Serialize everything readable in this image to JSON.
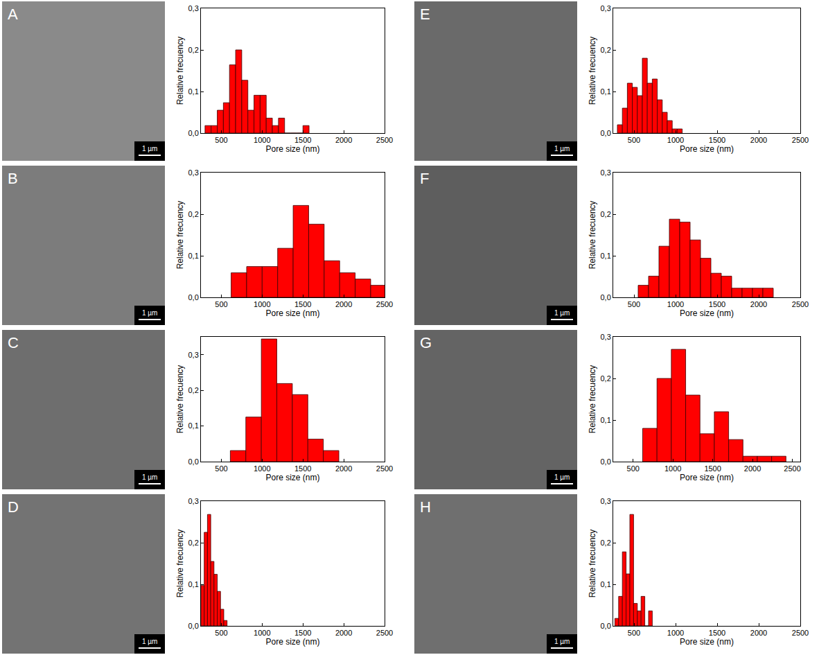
{
  "chart_data": [
    {
      "type": "histogram",
      "color": "#ff0000",
      "xlabel": "Pore size (nm)",
      "ylabel": "Relative frecuency",
      "bins": [
        300,
        375,
        450,
        525,
        600,
        675,
        750,
        825,
        900,
        975,
        1050,
        1125,
        1200,
        1275,
        1350,
        1425,
        1500,
        1575
      ],
      "values": [
        0.018,
        0.018,
        0.055,
        0.073,
        0.164,
        0.2,
        0.127,
        0.055,
        0.091,
        0.091,
        0.036,
        0.018,
        0.036,
        0,
        0,
        0,
        0.018
      ],
      "xlim": [
        250,
        2500
      ],
      "ylim": [
        0,
        0.3
      ],
      "xticks": [
        500,
        1000,
        1500,
        2000,
        2500
      ],
      "yticks": [
        {
          "value": 0,
          "label": "0,0"
        },
        {
          "value": 0.1,
          "label": "0,1"
        },
        {
          "value": 0.2,
          "label": "0,2"
        },
        {
          "value": 0.3,
          "label": "0,3"
        }
      ]
    },
    {
      "type": "histogram",
      "color": "#ff0000",
      "xlabel": "Pore size (nm)",
      "ylabel": "Relative frecuency",
      "bins": [
        620,
        810,
        1000,
        1190,
        1380,
        1570,
        1760,
        1950,
        2140,
        2330,
        2520
      ],
      "values": [
        0.059,
        0.074,
        0.074,
        0.118,
        0.221,
        0.176,
        0.088,
        0.059,
        0.044,
        0.029
      ],
      "xlim": [
        250,
        2500
      ],
      "ylim": [
        0,
        0.3
      ],
      "xticks": [
        500,
        1000,
        1500,
        2000,
        2500
      ],
      "yticks": [
        {
          "value": 0,
          "label": "0,0"
        },
        {
          "value": 0.1,
          "label": "0,1"
        },
        {
          "value": 0.2,
          "label": "0,2"
        },
        {
          "value": 0.3,
          "label": "0,3"
        }
      ]
    },
    {
      "type": "histogram",
      "color": "#ff0000",
      "xlabel": "Pore size (nm)",
      "ylabel": "Relative frecuency",
      "bins": [
        610,
        800,
        990,
        1180,
        1370,
        1560,
        1750,
        1940
      ],
      "values": [
        0.031,
        0.125,
        0.344,
        0.219,
        0.188,
        0.063,
        0.031
      ],
      "xlim": [
        250,
        2500
      ],
      "ylim": [
        0,
        0.35
      ],
      "xticks": [
        500,
        1000,
        1500,
        2000,
        2500
      ],
      "yticks": [
        {
          "value": 0,
          "label": "0,0"
        },
        {
          "value": 0.1,
          "label": "0,1"
        },
        {
          "value": 0.2,
          "label": "0,2"
        },
        {
          "value": 0.3,
          "label": "0,3"
        }
      ]
    },
    {
      "type": "histogram",
      "color": "#ff0000",
      "xlabel": "Pore size (nm)",
      "ylabel": "Relative frecuency",
      "bins": [
        250,
        290,
        330,
        370,
        410,
        450,
        490,
        530,
        570
      ],
      "values": [
        0.097,
        0.225,
        0.268,
        0.155,
        0.124,
        0.083,
        0.04,
        0.013
      ],
      "xlim": [
        250,
        2500
      ],
      "ylim": [
        0,
        0.3
      ],
      "xticks": [
        500,
        1000,
        1500,
        2000,
        2500
      ],
      "yticks": [
        {
          "value": 0,
          "label": "0,0"
        },
        {
          "value": 0.1,
          "label": "0,1"
        },
        {
          "value": 0.2,
          "label": "0,2"
        },
        {
          "value": 0.3,
          "label": "0,3"
        }
      ]
    },
    {
      "type": "histogram",
      "color": "#ff0000",
      "xlabel": "Pore size (nm)",
      "ylabel": "Relative frecuency",
      "bins": [
        300,
        360,
        420,
        480,
        540,
        600,
        660,
        720,
        780,
        840,
        900,
        960,
        1020,
        1080
      ],
      "values": [
        0.02,
        0.06,
        0.12,
        0.11,
        0.09,
        0.18,
        0.12,
        0.13,
        0.08,
        0.05,
        0.03,
        0.01,
        0.01
      ],
      "xlim": [
        250,
        2500
      ],
      "ylim": [
        0,
        0.3
      ],
      "xticks": [
        500,
        1000,
        1500,
        2000,
        2500
      ],
      "yticks": [
        {
          "value": 0,
          "label": "0,0"
        },
        {
          "value": 0.1,
          "label": "0,1"
        },
        {
          "value": 0.2,
          "label": "0,2"
        },
        {
          "value": 0.3,
          "label": "0,3"
        }
      ]
    },
    {
      "type": "histogram",
      "color": "#ff0000",
      "xlabel": "Pore size (nm)",
      "ylabel": "Relative frecuency",
      "bins": [
        550,
        675,
        800,
        925,
        1050,
        1175,
        1300,
        1425,
        1550,
        1675,
        1800,
        1925,
        2050,
        2175
      ],
      "values": [
        0.029,
        0.051,
        0.123,
        0.188,
        0.181,
        0.138,
        0.094,
        0.058,
        0.051,
        0.022,
        0.022,
        0.022,
        0.022
      ],
      "xlim": [
        250,
        2500
      ],
      "ylim": [
        0,
        0.3
      ],
      "xticks": [
        500,
        1000,
        1500,
        2000,
        2500
      ],
      "yticks": [
        {
          "value": 0,
          "label": "0,0"
        },
        {
          "value": 0.1,
          "label": "0,1"
        },
        {
          "value": 0.2,
          "label": "0,2"
        },
        {
          "value": 0.3,
          "label": "0,3"
        }
      ]
    },
    {
      "type": "histogram",
      "color": "#ff0000",
      "xlabel": "Pore size (nm)",
      "ylabel": "Relative frecuency",
      "bins": [
        620,
        800,
        980,
        1160,
        1340,
        1520,
        1700,
        1880,
        2060,
        2240,
        2420
      ],
      "values": [
        0.08,
        0.2,
        0.27,
        0.16,
        0.067,
        0.12,
        0.053,
        0.013,
        0.013,
        0.013
      ],
      "xlim": [
        250,
        2600
      ],
      "ylim": [
        0,
        0.3
      ],
      "xticks": [
        500,
        1000,
        1500,
        2000,
        2500
      ],
      "yticks": [
        {
          "value": 0,
          "label": "0,0"
        },
        {
          "value": 0.1,
          "label": "0,1"
        },
        {
          "value": 0.2,
          "label": "0,2"
        },
        {
          "value": 0.3,
          "label": "0,3"
        }
      ]
    },
    {
      "type": "histogram",
      "color": "#ff0000",
      "xlabel": "Pore size (nm)",
      "ylabel": "Relative frecuency",
      "bins": [
        270,
        315,
        360,
        405,
        450,
        495,
        540,
        585,
        630,
        675,
        720
      ],
      "values": [
        0.018,
        0.071,
        0.178,
        0.125,
        0.268,
        0.054,
        0.036,
        0.071,
        0,
        0.036
      ],
      "xlim": [
        250,
        2500
      ],
      "ylim": [
        0,
        0.3
      ],
      "xticks": [
        500,
        1000,
        1500,
        2000,
        2500
      ],
      "yticks": [
        {
          "value": 0,
          "label": "0,0"
        },
        {
          "value": 0.1,
          "label": "0,1"
        },
        {
          "value": 0.2,
          "label": "0,2"
        },
        {
          "value": 0.3,
          "label": "0,3"
        }
      ]
    }
  ],
  "micrographs": [
    {
      "panel": "A",
      "scale_bar": "1 µm"
    },
    {
      "panel": "B",
      "scale_bar": "1 µm"
    },
    {
      "panel": "C",
      "scale_bar": "1 µm"
    },
    {
      "panel": "D",
      "scale_bar": "1 µm"
    },
    {
      "panel": "E",
      "scale_bar": "1 µm"
    },
    {
      "panel": "F",
      "scale_bar": "1 µm"
    },
    {
      "panel": "G",
      "scale_bar": "1 µm"
    },
    {
      "panel": "H",
      "scale_bar": "1 µm"
    }
  ]
}
